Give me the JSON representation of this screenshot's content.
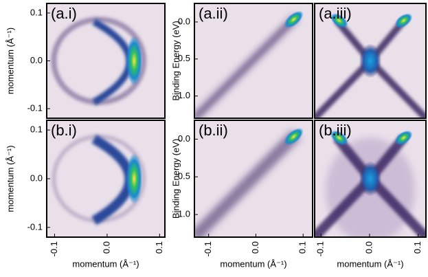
{
  "chart_data": [
    {
      "type": "heatmap",
      "panel_label": "(a.i)",
      "xlim": [
        -0.115,
        0.11
      ],
      "ylim": [
        -0.12,
        0.12
      ],
      "yticks": [
        0.1,
        {
          "value": 0,
          "label": "0.0"
        },
        -0.1
      ],
      "y_label": "momentum (Å⁻¹)"
    },
    {
      "type": "heatmap",
      "panel_label": "(a.ii)",
      "xlim": [
        -0.13,
        0.12
      ],
      "ylim": [
        1.3,
        -0.25
      ],
      "yticks": [
        {
          "value": 0,
          "label": "0.0"
        },
        0.5,
        {
          "value": 1,
          "label": "1.0"
        }
      ],
      "y_label": "Binding Energy (eV)"
    },
    {
      "type": "heatmap",
      "panel_label": "(a.iii)",
      "xlim": [
        -0.113,
        0.116
      ],
      "ylim": [
        1.3,
        -0.25
      ]
    },
    {
      "type": "heatmap",
      "panel_label": "(b.i)",
      "xlim": [
        -0.115,
        0.11
      ],
      "ylim": [
        -0.12,
        0.12
      ],
      "xticks": [
        -0.1,
        {
          "value": 0,
          "label": "0.0"
        },
        0.1
      ],
      "x_label": "momentum (Å⁻¹)",
      "yticks": [
        0.1,
        {
          "value": 0,
          "label": "0.0"
        },
        -0.1
      ],
      "y_label": "momentum (Å⁻¹)"
    },
    {
      "type": "heatmap",
      "panel_label": "(b.ii)",
      "xlim": [
        -0.13,
        0.12
      ],
      "ylim": [
        1.3,
        -0.25
      ],
      "xticks": [
        -0.1,
        {
          "value": 0,
          "label": "0.0"
        },
        0.1
      ],
      "x_label": "momentum (Å⁻¹)",
      "yticks": [
        {
          "value": 0,
          "label": "0.0"
        },
        0.5,
        {
          "value": 1,
          "label": "1.0"
        }
      ],
      "y_label": "Binding Energy (eV)"
    },
    {
      "type": "heatmap",
      "panel_label": "(b.iii)",
      "xlim": [
        -0.113,
        0.116
      ],
      "ylim": [
        1.3,
        -0.25
      ],
      "xticks": [
        -0.1,
        {
          "value": 0,
          "label": "0.0"
        },
        0.1
      ],
      "x_label": "momentum (Å⁻¹)"
    }
  ]
}
